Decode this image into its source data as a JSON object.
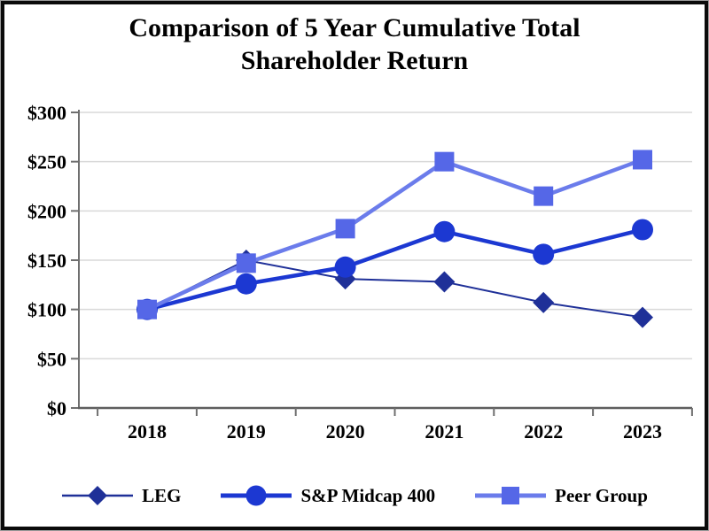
{
  "window": {
    "title_line1": "Comparison of 5 Year Cumulative Total",
    "title_line2": "Shareholder Return"
  },
  "chart_data": {
    "type": "line",
    "title": "Comparison of 5 Year Cumulative Total Shareholder Return",
    "categories": [
      "2018",
      "2019",
      "2020",
      "2021",
      "2022",
      "2023"
    ],
    "series": [
      {
        "name": "LEG",
        "marker": "diamond",
        "marker_color": "#1f3098",
        "line_color": "#1f3098",
        "line_width": 2,
        "marker_size": 11,
        "values": [
          100,
          150,
          131,
          128,
          107,
          92
        ]
      },
      {
        "name": "S&P Midcap 400",
        "marker": "circle",
        "marker_color": "#1c38d2",
        "line_color": "#1c38d2",
        "line_width": 4.5,
        "marker_size": 12,
        "values": [
          100,
          126,
          143,
          179,
          156,
          181
        ]
      },
      {
        "name": "Peer Group",
        "marker": "square",
        "marker_color": "#5567e7",
        "line_color": "#6b7ceb",
        "line_width": 4.5,
        "marker_size": 11,
        "values": [
          100,
          147,
          182,
          250,
          215,
          252
        ]
      }
    ],
    "y_tick_labels": [
      "$0",
      "$50",
      "$100",
      "$150",
      "$200",
      "$250",
      "$300"
    ],
    "ylim": [
      0,
      300
    ],
    "y_tick_step": 50,
    "grid": true,
    "legend_position": "bottom"
  },
  "colors": {
    "background": "#ffffff",
    "outer_border": "#0b0b0b",
    "axis": "#6f6f6f",
    "gridline": "#d9d9d9",
    "text": "#000000"
  }
}
